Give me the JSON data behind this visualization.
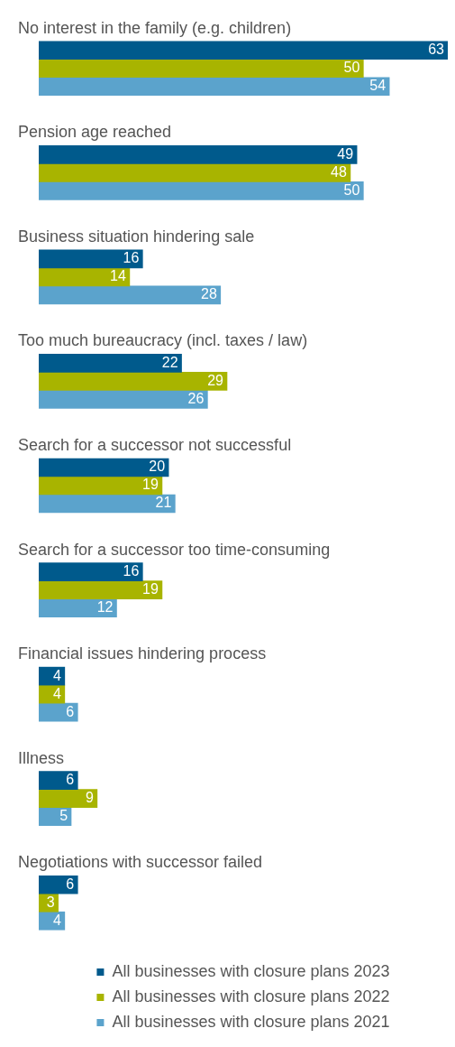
{
  "chart_data": {
    "type": "bar",
    "orientation": "horizontal",
    "data_labels": true,
    "legend": "bottom",
    "categories": [
      "No interest in the family (e.g. children)",
      "Pension age reached",
      "Business situation hindering sale",
      "Too much bureaucracy (incl. taxes / law)",
      "Search for a successor not successful",
      "Search for a successor too time-consuming",
      "Financial issues hindering process",
      "Illness",
      "Negotiations with successor failed"
    ],
    "series": [
      {
        "name": "All businesses with closure plans 2023",
        "color": "#005a8c",
        "values": [
          63,
          49,
          16,
          22,
          20,
          16,
          4,
          6,
          6
        ]
      },
      {
        "name": "All businesses with closure plans 2022",
        "color": "#a8b400",
        "values": [
          50,
          48,
          14,
          29,
          19,
          19,
          4,
          9,
          3
        ]
      },
      {
        "name": "All businesses with closure plans 2021",
        "color": "#5ba3cc",
        "values": [
          54,
          50,
          28,
          26,
          21,
          12,
          6,
          5,
          4
        ]
      }
    ]
  }
}
